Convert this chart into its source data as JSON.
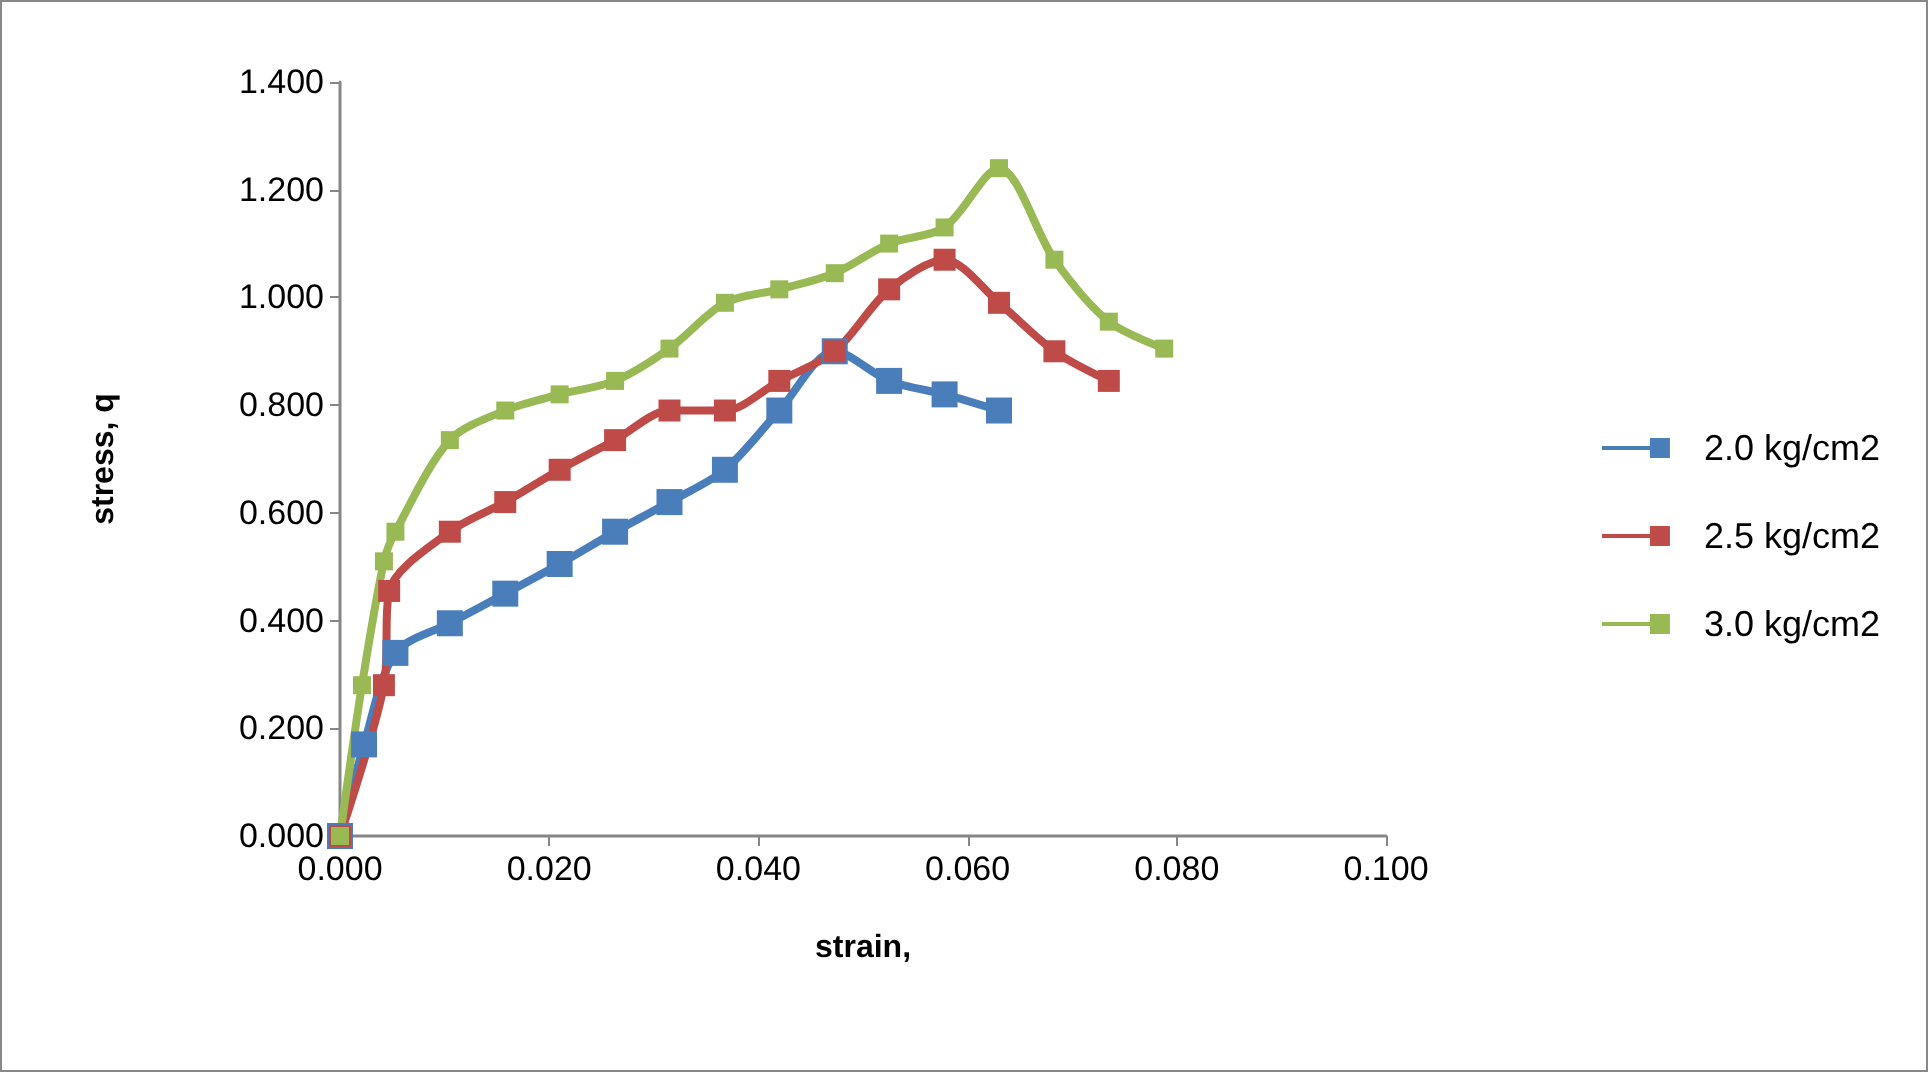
{
  "chart_data": {
    "type": "line",
    "xlabel": "strain,",
    "ylabel": "stress, q",
    "marker": "square",
    "line_style": "solid",
    "grid": false,
    "legend": "right",
    "xlim": [
      0,
      0.1
    ],
    "ylim": [
      0,
      1.4
    ],
    "xticks": [
      {
        "value": 0,
        "label": "0.000"
      },
      {
        "value": 0.02,
        "label": "0.020"
      },
      {
        "value": 0.04,
        "label": "0.040"
      },
      {
        "value": 0.06,
        "label": "0.060"
      },
      {
        "value": 0.08,
        "label": "0.080"
      },
      {
        "value": 0.1,
        "label": "0.100"
      }
    ],
    "yticks": [
      {
        "value": 0,
        "label": "0.000"
      },
      {
        "value": 0.2,
        "label": "0.200"
      },
      {
        "value": 0.4,
        "label": "0.400"
      },
      {
        "value": 0.6,
        "label": "0.600"
      },
      {
        "value": 0.8,
        "label": "0.800"
      },
      {
        "value": 1,
        "label": "1.000"
      },
      {
        "value": 1.2,
        "label": "1.200"
      },
      {
        "value": 1.4,
        "label": "1.400"
      }
    ],
    "series": [
      {
        "name": "2.0 kg/cm2",
        "color": "#4a7ebb",
        "x": [
          0,
          0.0023,
          0.0053,
          0.0105,
          0.0158,
          0.021,
          0.0263,
          0.0315,
          0.0368,
          0.042,
          0.0473,
          0.0525,
          0.0578,
          0.063
        ],
        "values": [
          0,
          0.17,
          0.34,
          0.395,
          0.45,
          0.505,
          0.565,
          0.62,
          0.68,
          0.79,
          0.9,
          0.845,
          0.82,
          0.79
        ]
      },
      {
        "name": "2.5 kg/cm2",
        "color": "#be4b48",
        "x": [
          0,
          0.0042,
          0.0047,
          0.0105,
          0.0158,
          0.021,
          0.0263,
          0.0315,
          0.0368,
          0.042,
          0.0473,
          0.0525,
          0.0578,
          0.063,
          0.0683,
          0.0735
        ],
        "values": [
          0,
          0.28,
          0.455,
          0.565,
          0.62,
          0.68,
          0.735,
          0.79,
          0.79,
          0.845,
          0.9,
          1.015,
          1.07,
          0.99,
          0.9,
          0.845
        ]
      },
      {
        "name": "3.0 kg/cm2",
        "color": "#98b954",
        "x": [
          0,
          0.0021,
          0.0042,
          0.0053,
          0.0105,
          0.0158,
          0.021,
          0.0263,
          0.0315,
          0.0368,
          0.042,
          0.0473,
          0.0525,
          0.0578,
          0.063,
          0.0683,
          0.0735,
          0.0788
        ],
        "values": [
          0,
          0.28,
          0.51,
          0.565,
          0.735,
          0.79,
          0.82,
          0.845,
          0.905,
          0.99,
          1.015,
          1.045,
          1.1,
          1.13,
          1.24,
          1.07,
          0.955,
          0.905
        ]
      }
    ]
  }
}
